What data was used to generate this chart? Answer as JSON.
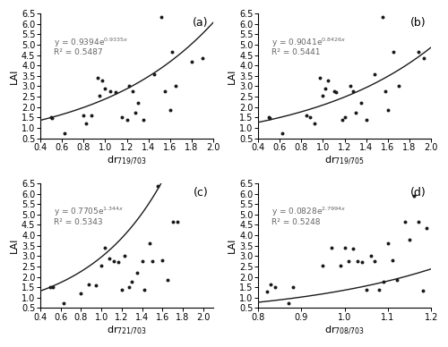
{
  "subplots": [
    {
      "label": "(a)",
      "xlabel_sub": "719/703",
      "eq_a": 0.9394,
      "eq_b": 0.9335,
      "eq_str": "y = 0.9394e",
      "eq_exp": "0.9335x",
      "r2": "R² = 0.5487",
      "xlim": [
        0.4,
        2.0
      ],
      "ylim": [
        0.5,
        6.5
      ],
      "xticks": [
        0.4,
        0.6,
        0.8,
        1.0,
        1.2,
        1.4,
        1.6,
        1.8,
        2.0
      ],
      "yticks": [
        0.5,
        1.0,
        1.5,
        2.0,
        2.5,
        3.0,
        3.5,
        4.0,
        4.5,
        5.0,
        5.5,
        6.0,
        6.5
      ],
      "scatter_x": [
        0.5,
        0.51,
        0.62,
        0.8,
        0.82,
        0.87,
        0.93,
        0.95,
        0.97,
        1.0,
        1.05,
        1.1,
        1.15,
        1.2,
        1.22,
        1.25,
        1.28,
        1.3,
        1.35,
        1.45,
        1.52,
        1.55,
        1.6,
        1.62,
        1.65,
        1.8,
        1.9
      ],
      "scatter_y": [
        1.5,
        1.49,
        0.75,
        1.62,
        1.2,
        1.6,
        3.4,
        2.55,
        3.3,
        2.9,
        2.75,
        2.7,
        1.5,
        1.4,
        3.0,
        2.75,
        1.75,
        2.2,
        1.4,
        3.6,
        6.35,
        2.75,
        1.85,
        4.65,
        3.0,
        4.2,
        4.35
      ]
    },
    {
      "label": "(b)",
      "xlabel_sub": "719/705",
      "eq_a": 0.9041,
      "eq_b": 0.8426,
      "eq_str": "y = 0.9041e",
      "eq_exp": "0.8426x",
      "r2": "R² = 0.5441",
      "xlim": [
        0.4,
        2.0
      ],
      "ylim": [
        0.5,
        6.5
      ],
      "xticks": [
        0.4,
        0.6,
        0.8,
        1.0,
        1.2,
        1.4,
        1.6,
        1.8,
        2.0
      ],
      "yticks": [
        0.5,
        1.0,
        1.5,
        2.0,
        2.5,
        3.0,
        3.5,
        4.0,
        4.5,
        5.0,
        5.5,
        6.0,
        6.5
      ],
      "scatter_x": [
        0.5,
        0.51,
        0.62,
        0.85,
        0.88,
        0.92,
        0.97,
        1.0,
        1.02,
        1.05,
        1.1,
        1.12,
        1.18,
        1.2,
        1.25,
        1.28,
        1.3,
        1.35,
        1.4,
        1.48,
        1.55,
        1.58,
        1.6,
        1.65,
        1.7,
        1.88,
        1.93
      ],
      "scatter_y": [
        1.5,
        1.49,
        0.75,
        1.62,
        1.5,
        1.2,
        3.4,
        2.55,
        2.9,
        3.3,
        2.75,
        2.7,
        1.4,
        1.5,
        3.0,
        2.75,
        1.75,
        2.2,
        1.4,
        3.6,
        6.35,
        2.75,
        1.85,
        4.65,
        3.0,
        4.65,
        4.35
      ]
    },
    {
      "label": "(c)",
      "xlabel_sub": "721/703",
      "eq_a": 0.7705,
      "eq_b": 1.344,
      "eq_str": "y = 0.7705e",
      "eq_exp": "1.344x",
      "r2": "R² = 0.5343",
      "xlim": [
        0.4,
        2.1
      ],
      "ylim": [
        0.5,
        6.5
      ],
      "xticks": [
        0.4,
        0.6,
        0.8,
        1.0,
        1.2,
        1.4,
        1.6,
        1.8,
        2.0
      ],
      "yticks": [
        0.5,
        1.0,
        1.5,
        2.0,
        2.5,
        3.0,
        3.5,
        4.0,
        4.5,
        5.0,
        5.5,
        6.0,
        6.5
      ],
      "scatter_x": [
        0.5,
        0.52,
        0.63,
        0.8,
        0.88,
        0.95,
        1.0,
        1.03,
        1.08,
        1.12,
        1.17,
        1.2,
        1.23,
        1.27,
        1.3,
        1.35,
        1.4,
        1.42,
        1.47,
        1.5,
        1.55,
        1.6,
        1.65,
        1.7,
        1.75
      ],
      "scatter_y": [
        1.5,
        1.49,
        0.75,
        1.2,
        1.62,
        1.6,
        2.55,
        3.4,
        2.9,
        2.75,
        2.7,
        1.4,
        3.0,
        1.5,
        1.75,
        2.2,
        2.75,
        1.4,
        3.6,
        2.75,
        6.35,
        2.8,
        1.85,
        4.65,
        4.65
      ]
    },
    {
      "label": "(d)",
      "xlabel_sub": "708/703",
      "eq_a": 0.0828,
      "eq_b": 2.7994,
      "eq_str": "y = 0.0828e",
      "eq_exp": "2.7994x",
      "r2": "R² = 0.5248",
      "xlim": [
        0.8,
        1.2
      ],
      "ylim": [
        0.5,
        6.5
      ],
      "xticks": [
        0.8,
        0.9,
        1.0,
        1.1,
        1.2
      ],
      "yticks": [
        0.5,
        1.0,
        1.5,
        2.0,
        2.5,
        3.0,
        3.5,
        4.0,
        4.5,
        5.0,
        5.5,
        6.0,
        6.5
      ],
      "scatter_x": [
        0.82,
        0.83,
        0.84,
        0.87,
        0.88,
        0.95,
        0.97,
        0.99,
        1.0,
        1.01,
        1.02,
        1.03,
        1.04,
        1.05,
        1.06,
        1.07,
        1.08,
        1.09,
        1.1,
        1.11,
        1.12,
        1.14,
        1.15,
        1.16,
        1.17,
        1.18,
        1.19
      ],
      "scatter_y": [
        1.3,
        1.65,
        1.5,
        0.75,
        1.5,
        2.55,
        3.4,
        2.55,
        3.4,
        2.75,
        3.35,
        2.75,
        2.7,
        1.4,
        3.0,
        2.75,
        1.4,
        1.75,
        3.6,
        2.8,
        1.85,
        4.65,
        3.8,
        5.9,
        4.65,
        1.35,
        4.35
      ]
    }
  ],
  "bg_color": "#ffffff",
  "scatter_color": "#1a1a1a",
  "line_color": "#1a1a1a",
  "eq_color": "#666666",
  "marker_size": 8,
  "font_size_eq": 6.5,
  "font_size_label": 8,
  "font_size_tick": 7,
  "font_size_panel": 9
}
